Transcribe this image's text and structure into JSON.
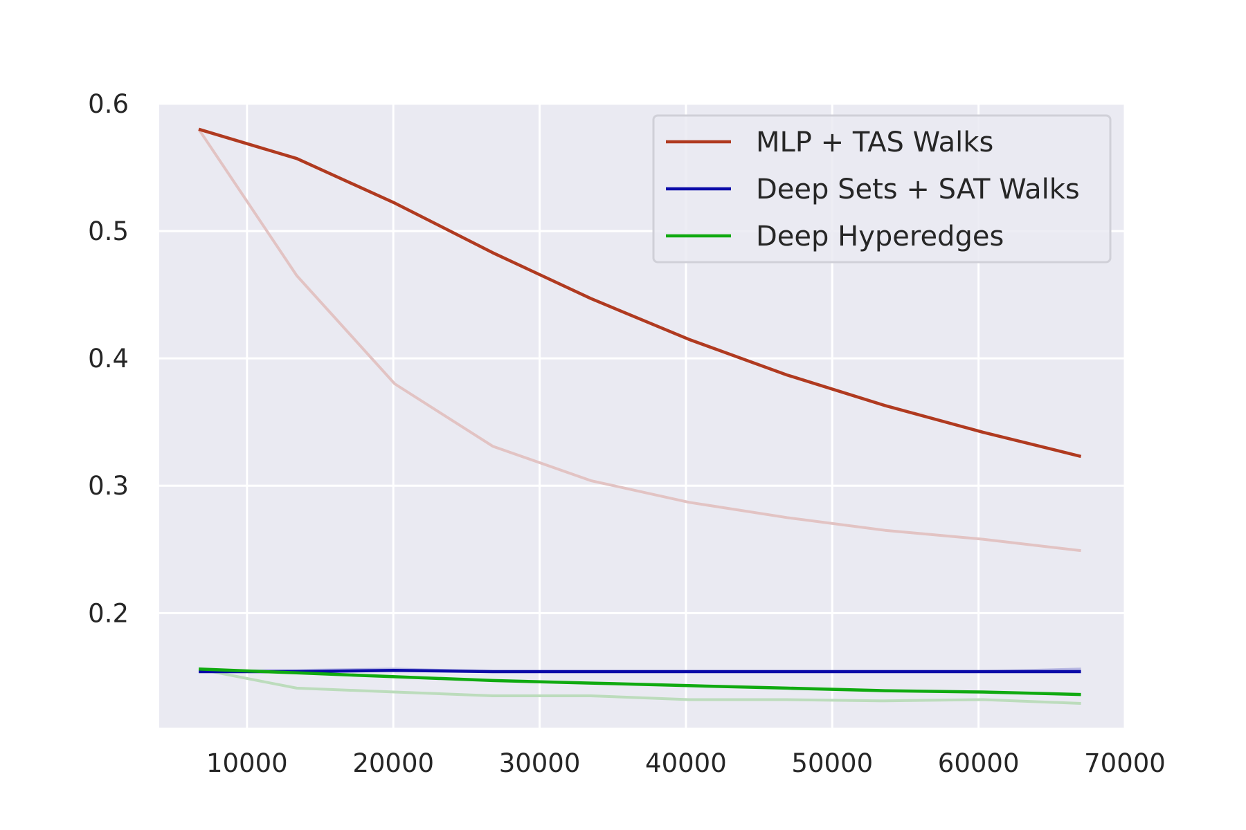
{
  "chart_data": {
    "type": "line",
    "title": "",
    "xlabel": "",
    "ylabel": "",
    "xlim": [
      4000,
      70000
    ],
    "ylim": [
      0.11,
      0.6
    ],
    "xticks": [
      10000,
      20000,
      30000,
      40000,
      50000,
      60000,
      70000
    ],
    "yticks": [
      0.2,
      0.3,
      0.4,
      0.5,
      0.6
    ],
    "xtick_labels": [
      "10000",
      "20000",
      "30000",
      "40000",
      "50000",
      "60000",
      "70000"
    ],
    "ytick_labels": [
      "0.2",
      "0.3",
      "0.4",
      "0.5",
      "0.6"
    ],
    "grid": true,
    "legend_position": "top-right",
    "x": [
      6700,
      13400,
      20100,
      26800,
      33500,
      40200,
      46900,
      53600,
      60300,
      67000
    ],
    "series": [
      {
        "name": "MLP + TAS Walks",
        "color": "#b03a20",
        "values": [
          0.58,
          0.557,
          0.522,
          0.483,
          0.447,
          0.415,
          0.387,
          0.363,
          0.342,
          0.323
        ]
      },
      {
        "name": "Deep Sets + SAT Walks",
        "color": "#0a0aa8",
        "values": [
          0.154,
          0.154,
          0.155,
          0.154,
          0.154,
          0.154,
          0.154,
          0.154,
          0.154,
          0.154
        ]
      },
      {
        "name": "Deep Hyperedges",
        "color": "#10aa10",
        "values": [
          0.156,
          0.153,
          0.15,
          0.147,
          0.145,
          0.143,
          0.141,
          0.139,
          0.138,
          0.136
        ]
      }
    ],
    "raw_series": [
      {
        "color": "#e2c3c3",
        "values": [
          0.58,
          0.465,
          0.38,
          0.331,
          0.304,
          0.287,
          0.275,
          0.265,
          0.258,
          0.249
        ]
      },
      {
        "color": "#b8b8e2",
        "values": [
          0.154,
          0.155,
          0.156,
          0.154,
          0.154,
          0.154,
          0.154,
          0.154,
          0.154,
          0.156
        ]
      },
      {
        "color": "#bcdcbc",
        "values": [
          0.156,
          0.141,
          0.138,
          0.135,
          0.135,
          0.132,
          0.132,
          0.131,
          0.132,
          0.129
        ]
      }
    ]
  }
}
